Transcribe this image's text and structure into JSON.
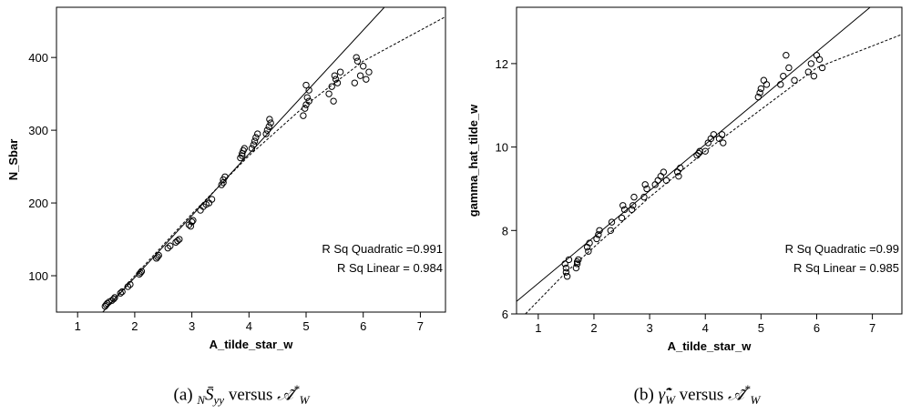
{
  "chart_data": [
    {
      "type": "scatter",
      "xlabel": "A_tilde_star_w",
      "ylabel": "N_Sbar",
      "xlim": [
        0.63,
        7.44
      ],
      "ylim": [
        50,
        469
      ],
      "xticks": [
        1,
        2,
        3,
        4,
        5,
        6,
        7
      ],
      "yticks": [
        100,
        200,
        300,
        400
      ],
      "annotations": [
        "R Sq Quadratic =0.991",
        "R Sq Linear = 0.984"
      ],
      "series": [
        {
          "kind": "points",
          "color": "#000000",
          "x": [
            1.5,
            1.52,
            1.55,
            1.48,
            1.6,
            1.63,
            1.65,
            1.75,
            1.78,
            1.88,
            1.92,
            2.08,
            2.12,
            2.1,
            2.38,
            2.4,
            2.42,
            2.58,
            2.62,
            2.72,
            2.78,
            2.75,
            2.95,
            3.0,
            3.02,
            2.98,
            3.15,
            3.2,
            3.25,
            3.3,
            3.35,
            3.52,
            3.55,
            3.58,
            3.55,
            3.85,
            3.88,
            3.9,
            3.92,
            3.88,
            4.05,
            4.1,
            4.12,
            4.15,
            4.08,
            4.3,
            4.35,
            4.38,
            4.32,
            4.36,
            4.95,
            5.0,
            5.02,
            5.05,
            4.98,
            5.0,
            5.05,
            5.4,
            5.45,
            5.5,
            5.55,
            5.6,
            5.48,
            5.52,
            5.85,
            5.9,
            5.95,
            6.0,
            6.05,
            5.88,
            6.1
          ],
          "values": [
            60,
            62,
            64,
            58,
            66,
            68,
            70,
            76,
            78,
            85,
            88,
            102,
            106,
            104,
            124,
            126,
            128,
            138,
            141,
            146,
            150,
            148,
            170,
            174,
            176,
            168,
            190,
            195,
            198,
            200,
            205,
            225,
            232,
            236,
            228,
            262,
            268,
            272,
            275,
            265,
            275,
            285,
            290,
            295,
            280,
            295,
            305,
            310,
            300,
            315,
            320,
            335,
            345,
            355,
            330,
            362,
            340,
            350,
            360,
            375,
            365,
            380,
            340,
            370,
            365,
            395,
            375,
            388,
            370,
            400,
            380
          ]
        },
        {
          "kind": "line",
          "dash": false,
          "color": "#000000",
          "x": [
            1.44,
            6.37
          ],
          "values": [
            50,
            469
          ]
        },
        {
          "kind": "line",
          "dash": true,
          "color": "#000000",
          "x": [
            1.5,
            2,
            3,
            4,
            5,
            6,
            7.44
          ],
          "values": [
            56,
            100,
            185,
            265,
            335,
            395,
            456
          ]
        }
      ],
      "caption": {
        "label": "(a)",
        "pre_sub": "N",
        "lhs": "S̄",
        "lhs_sub": "yy",
        "versus": "versus",
        "rhs": "𝒜̃",
        "rhs_sup": "*",
        "rhs_sub": "W"
      }
    },
    {
      "type": "scatter",
      "xlabel": "A_tilde_star_w",
      "ylabel": "gamma_hat_tilde_w",
      "xlim": [
        0.61,
        7.53
      ],
      "ylim": [
        6,
        13.35
      ],
      "xticks": [
        1,
        2,
        3,
        4,
        5,
        6,
        7
      ],
      "yticks": [
        6,
        8,
        10,
        12
      ],
      "annotations": [
        "R Sq Quadratic =0.99",
        "R Sq Linear = 0.985"
      ],
      "series": [
        {
          "kind": "points",
          "color": "#000000",
          "x": [
            1.5,
            1.52,
            1.48,
            1.55,
            1.5,
            1.7,
            1.72,
            1.68,
            1.7,
            1.9,
            1.92,
            1.88,
            2.05,
            2.1,
            2.08,
            2.3,
            2.32,
            2.5,
            2.55,
            2.52,
            2.7,
            2.72,
            2.68,
            2.9,
            2.95,
            2.92,
            3.1,
            3.15,
            3.2,
            3.25,
            3.3,
            3.5,
            3.55,
            3.52,
            3.85,
            3.9,
            3.88,
            4.0,
            4.05,
            4.1,
            4.15,
            4.25,
            4.3,
            4.32,
            4.95,
            5.0,
            5.05,
            5.1,
            4.98,
            5.35,
            5.4,
            5.5,
            5.6,
            5.45,
            5.85,
            5.9,
            6.0,
            6.1,
            5.95,
            6.05
          ],
          "values": [
            7.0,
            6.9,
            7.2,
            7.3,
            7.1,
            7.2,
            7.3,
            7.1,
            7.25,
            7.5,
            7.7,
            7.6,
            7.8,
            8.0,
            7.9,
            8.0,
            8.2,
            8.3,
            8.5,
            8.6,
            8.6,
            8.8,
            8.5,
            8.8,
            9.0,
            9.1,
            9.1,
            9.2,
            9.3,
            9.4,
            9.2,
            9.4,
            9.5,
            9.3,
            9.8,
            9.9,
            9.85,
            9.9,
            10.1,
            10.2,
            10.3,
            10.2,
            10.3,
            10.1,
            11.2,
            11.4,
            11.6,
            11.5,
            11.3,
            11.5,
            11.7,
            11.9,
            11.6,
            12.2,
            11.8,
            12.0,
            12.2,
            11.9,
            11.7,
            12.1
          ]
        },
        {
          "kind": "line",
          "dash": false,
          "color": "#000000",
          "x": [
            0.61,
            6.96
          ],
          "values": [
            6.3,
            13.35
          ]
        },
        {
          "kind": "line",
          "dash": true,
          "color": "#000000",
          "x": [
            0.77,
            1.5,
            2,
            3,
            4,
            5,
            6,
            7.53
          ],
          "values": [
            6,
            7.0,
            7.6,
            8.8,
            9.9,
            10.9,
            11.9,
            12.7
          ]
        }
      ],
      "caption": {
        "label": "(b)",
        "pre_sub": "",
        "lhs": "γ̃̂",
        "lhs_sub": "W",
        "versus": "versus",
        "rhs": "𝒜̃",
        "rhs_sup": "*",
        "rhs_sub": "W"
      }
    }
  ]
}
